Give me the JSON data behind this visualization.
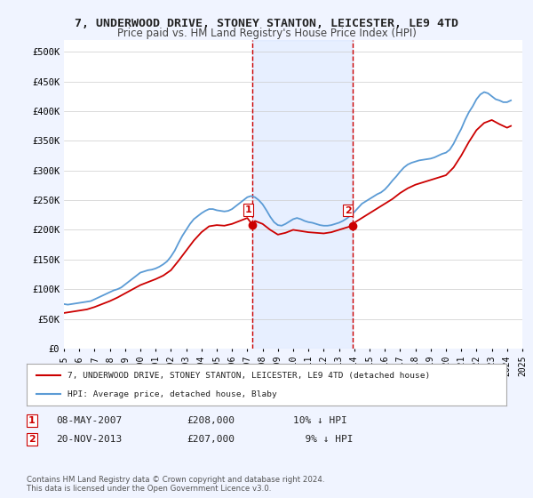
{
  "title": "7, UNDERWOOD DRIVE, STONEY STANTON, LEICESTER, LE9 4TD",
  "subtitle": "Price paid vs. HM Land Registry's House Price Index (HPI)",
  "bg_color": "#f0f4ff",
  "plot_bg_color": "#ffffff",
  "ylabel_color": "#333333",
  "ylim": [
    0,
    520000
  ],
  "yticks": [
    0,
    50000,
    100000,
    150000,
    200000,
    250000,
    300000,
    350000,
    400000,
    450000,
    500000
  ],
  "ytick_labels": [
    "£0",
    "£50K",
    "£100K",
    "£150K",
    "£200K",
    "£250K",
    "£300K",
    "£350K",
    "£400K",
    "£450K",
    "£500K"
  ],
  "sale1_date": 2007.35,
  "sale1_price": 208000,
  "sale1_label": "1",
  "sale2_date": 2013.9,
  "sale2_price": 207000,
  "sale2_label": "2",
  "vline_color": "#cc0000",
  "highlight_color": "#d0e0ff",
  "legend_line1": "7, UNDERWOOD DRIVE, STONEY STANTON, LEICESTER, LE9 4TD (detached house)",
  "legend_line2": "HPI: Average price, detached house, Blaby",
  "annotation1": "1    08-MAY-2007    £208,000    10% ↓ HPI",
  "annotation2": "2    20-NOV-2013    £207,000      9% ↓ HPI",
  "footer": "Contains HM Land Registry data © Crown copyright and database right 2024.\nThis data is licensed under the Open Government Licence v3.0.",
  "hpi_color": "#5b9bd5",
  "price_color": "#cc0000",
  "hpi_data": {
    "years": [
      1995,
      1995.25,
      1995.5,
      1995.75,
      1996,
      1996.25,
      1996.5,
      1996.75,
      1997,
      1997.25,
      1997.5,
      1997.75,
      1998,
      1998.25,
      1998.5,
      1998.75,
      1999,
      1999.25,
      1999.5,
      1999.75,
      2000,
      2000.25,
      2000.5,
      2000.75,
      2001,
      2001.25,
      2001.5,
      2001.75,
      2002,
      2002.25,
      2002.5,
      2002.75,
      2003,
      2003.25,
      2003.5,
      2003.75,
      2004,
      2004.25,
      2004.5,
      2004.75,
      2005,
      2005.25,
      2005.5,
      2005.75,
      2006,
      2006.25,
      2006.5,
      2006.75,
      2007,
      2007.25,
      2007.5,
      2007.75,
      2008,
      2008.25,
      2008.5,
      2008.75,
      2009,
      2009.25,
      2009.5,
      2009.75,
      2010,
      2010.25,
      2010.5,
      2010.75,
      2011,
      2011.25,
      2011.5,
      2011.75,
      2012,
      2012.25,
      2012.5,
      2012.75,
      2013,
      2013.25,
      2013.5,
      2013.75,
      2014,
      2014.25,
      2014.5,
      2014.75,
      2015,
      2015.25,
      2015.5,
      2015.75,
      2016,
      2016.25,
      2016.5,
      2016.75,
      2017,
      2017.25,
      2017.5,
      2017.75,
      2018,
      2018.25,
      2018.5,
      2018.75,
      2019,
      2019.25,
      2019.5,
      2019.75,
      2020,
      2020.25,
      2020.5,
      2020.75,
      2021,
      2021.25,
      2021.5,
      2021.75,
      2022,
      2022.25,
      2022.5,
      2022.75,
      2023,
      2023.25,
      2023.5,
      2023.75,
      2024,
      2024.25
    ],
    "values": [
      75000,
      74000,
      75000,
      76000,
      77000,
      78000,
      79000,
      80000,
      83000,
      86000,
      89000,
      92000,
      95000,
      98000,
      100000,
      103000,
      108000,
      113000,
      118000,
      123000,
      128000,
      130000,
      132000,
      133000,
      135000,
      138000,
      142000,
      147000,
      155000,
      165000,
      178000,
      190000,
      200000,
      210000,
      218000,
      223000,
      228000,
      232000,
      235000,
      235000,
      233000,
      232000,
      231000,
      232000,
      235000,
      240000,
      245000,
      250000,
      255000,
      257000,
      255000,
      250000,
      243000,
      233000,
      222000,
      213000,
      208000,
      207000,
      210000,
      214000,
      218000,
      220000,
      218000,
      215000,
      213000,
      212000,
      210000,
      208000,
      207000,
      207000,
      208000,
      210000,
      212000,
      215000,
      219000,
      224000,
      230000,
      237000,
      244000,
      248000,
      252000,
      256000,
      260000,
      263000,
      268000,
      275000,
      283000,
      290000,
      298000,
      305000,
      310000,
      313000,
      315000,
      317000,
      318000,
      319000,
      320000,
      322000,
      325000,
      328000,
      330000,
      335000,
      345000,
      358000,
      370000,
      385000,
      398000,
      408000,
      420000,
      428000,
      432000,
      430000,
      425000,
      420000,
      418000,
      415000,
      415000,
      418000
    ]
  },
  "price_data": {
    "years": [
      1995,
      1995.5,
      1996,
      1996.5,
      1997,
      1997.5,
      1998,
      1998.5,
      1999,
      1999.5,
      2000,
      2000.5,
      2001,
      2001.5,
      2002,
      2002.5,
      2003,
      2003.5,
      2004,
      2004.5,
      2005,
      2005.5,
      2006,
      2006.5,
      2007,
      2007.35,
      2007.5,
      2008,
      2008.5,
      2009,
      2009.5,
      2010,
      2010.5,
      2011,
      2011.5,
      2012,
      2012.5,
      2013,
      2013.5,
      2013.9,
      2014,
      2014.5,
      2015,
      2015.5,
      2016,
      2016.5,
      2017,
      2017.5,
      2018,
      2018.5,
      2019,
      2019.5,
      2020,
      2020.5,
      2021,
      2021.5,
      2022,
      2022.5,
      2023,
      2023.5,
      2024,
      2024.25
    ],
    "values": [
      60000,
      62000,
      64000,
      66000,
      70000,
      75000,
      80000,
      86000,
      93000,
      100000,
      107000,
      112000,
      117000,
      123000,
      132000,
      148000,
      165000,
      182000,
      196000,
      206000,
      208000,
      207000,
      210000,
      215000,
      220000,
      208000,
      215000,
      210000,
      200000,
      192000,
      195000,
      200000,
      198000,
      196000,
      195000,
      194000,
      196000,
      200000,
      204000,
      207000,
      212000,
      220000,
      228000,
      236000,
      244000,
      252000,
      262000,
      270000,
      276000,
      280000,
      284000,
      288000,
      292000,
      305000,
      325000,
      348000,
      368000,
      380000,
      385000,
      378000,
      372000,
      375000
    ]
  }
}
